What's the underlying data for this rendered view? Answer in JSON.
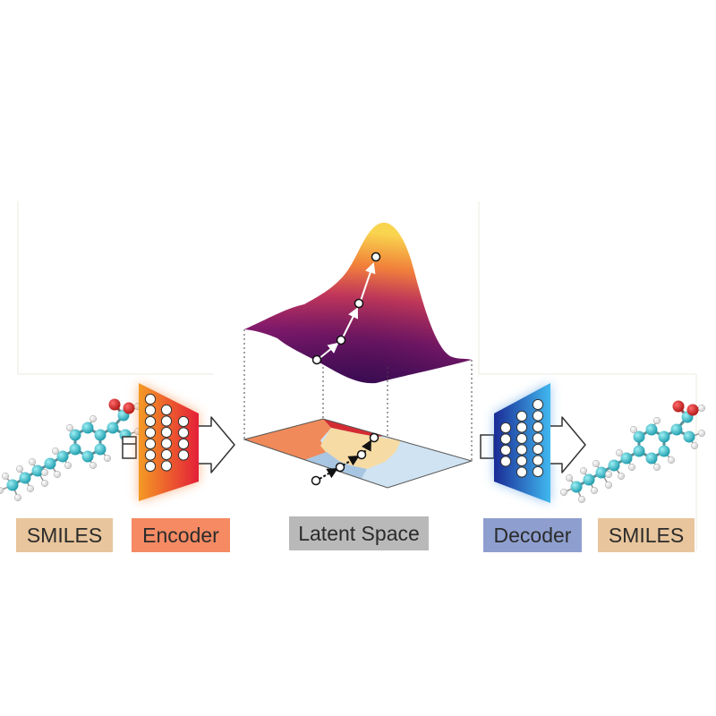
{
  "labels": {
    "smiles_input": "SMILES",
    "encoder": "Encoder",
    "latent_space": "Latent Space",
    "decoder": "Decoder",
    "smiles_output": "SMILES"
  },
  "colors": {
    "smiles_box": "#e8c59c",
    "encoder_box": "#f58a63",
    "latent_box": "#b9b9b9",
    "decoder_box": "#8e9fcf",
    "encoder_gradient": [
      "#f48a1e",
      "#e8203a"
    ],
    "decoder_gradient": [
      "#1c2f9a",
      "#3fb6ee"
    ],
    "surface_gradient": [
      "#4c0f66",
      "#b4206b",
      "#f07b38",
      "#f9d650"
    ],
    "latent_regions": [
      "#f08a5a",
      "#d42b33",
      "#f6dba4",
      "#a8c6e2",
      "#cfe3f2",
      "#3f7fbf"
    ],
    "molecule_carbon": "#2eb6c4",
    "molecule_oxygen": "#cc2222",
    "molecule_hydrogen": "#ffffff"
  },
  "icons": {
    "input_molecule": "molecule-icon",
    "output_molecule": "molecule-icon",
    "flow_arrows": "arrow-right-icon",
    "neurons": "circle-icon"
  }
}
